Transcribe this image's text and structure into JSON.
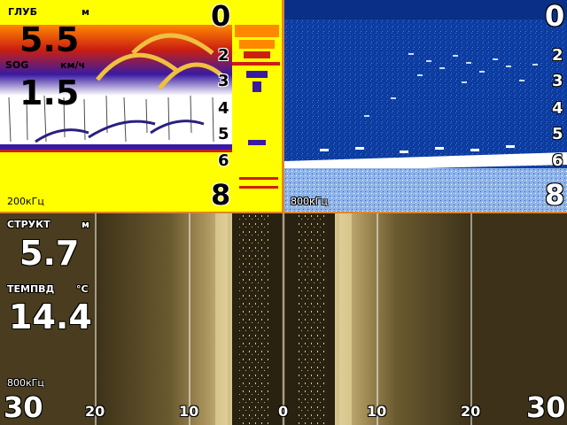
{
  "left_panel": {
    "depth_label": "ГЛУБ",
    "depth_unit": "м",
    "depth_value": "5.5",
    "sog_label": "SOG",
    "sog_unit": "км/ч",
    "sog_value": "1.5",
    "frequency": "200кГц",
    "scale": [
      "0",
      "2",
      "3",
      "4",
      "5",
      "6",
      "8"
    ]
  },
  "right_panel": {
    "frequency": "800кГц",
    "scale": [
      "0",
      "2",
      "3",
      "4",
      "5",
      "6",
      "8"
    ]
  },
  "bottom_panel": {
    "struct_label": "СТРУКТ",
    "struct_unit": "м",
    "struct_value": "5.7",
    "temp_label": "ТЕМПВД",
    "temp_unit": "°C",
    "temp_value": "14.4",
    "frequency": "800кГц",
    "range_left": "30",
    "range_right": "30",
    "axis": [
      "20",
      "10",
      "0",
      "10",
      "20"
    ]
  },
  "colors": {
    "sonar_background": "#ffff00",
    "downscan_background": "#0c3ca0",
    "sidescan_background": "#4a3d1f",
    "pane_divider": "#e0862a"
  }
}
